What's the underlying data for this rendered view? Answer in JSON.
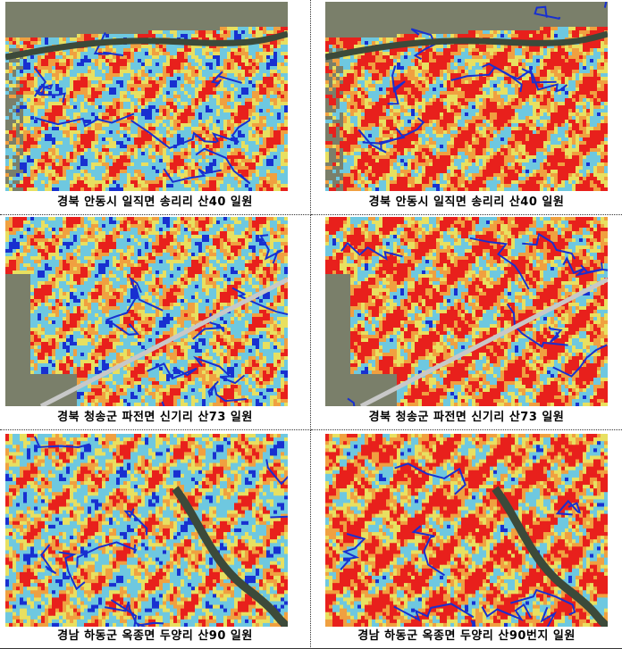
{
  "panels": [
    {
      "caption": "경북 안동시 일직면 송리리 산40 일원",
      "scene": "andong",
      "intensity": "low"
    },
    {
      "caption": "경북 안동시 일직면 송리리 산40 일원",
      "scene": "andong",
      "intensity": "high"
    },
    {
      "caption": "경북 청송군 파전면 신기리 산73 일원",
      "scene": "cheongsong",
      "intensity": "low"
    },
    {
      "caption": "경북 청송군 파전면 신기리 산73 일원",
      "scene": "cheongsong",
      "intensity": "high"
    },
    {
      "caption": "경남 하동군 옥종면 두양리 산90 일원",
      "scene": "hadong",
      "intensity": "low"
    },
    {
      "caption": "경남 하동군 옥종면 두양리 산90번지 일원",
      "scene": "hadong",
      "intensity": "high"
    }
  ],
  "colors": {
    "red": "#e8201c",
    "orange": "#f0a040",
    "yellow": "#e8e060",
    "lightblue": "#6ec8e0",
    "blue": "#1830d0",
    "river": "#3c4a3a",
    "aerial": "#7a7f6a"
  }
}
